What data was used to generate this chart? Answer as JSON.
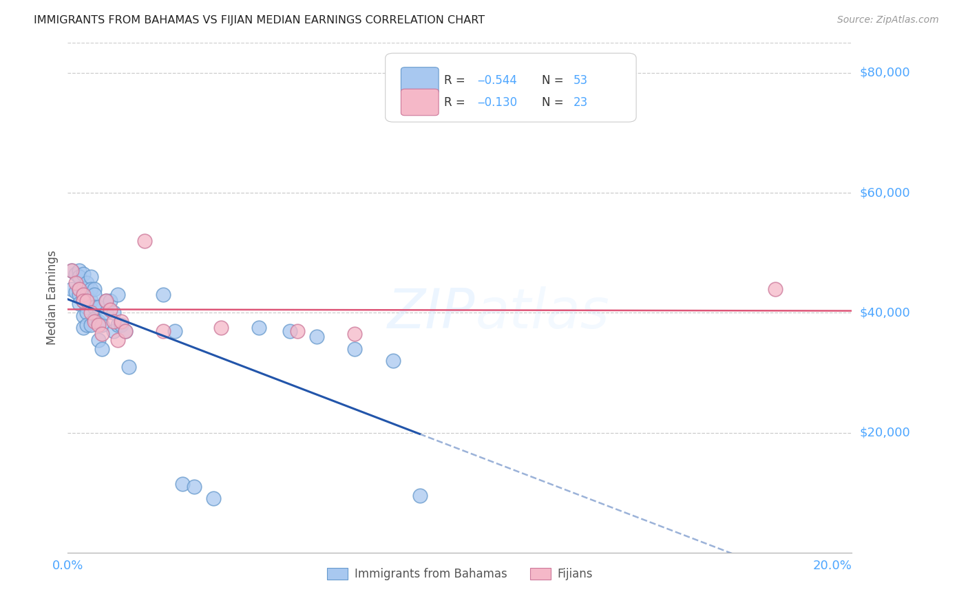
{
  "title": "IMMIGRANTS FROM BAHAMAS VS FIJIAN MEDIAN EARNINGS CORRELATION CHART",
  "source": "Source: ZipAtlas.com",
  "accent_color": "#4da6ff",
  "ylabel": "Median Earnings",
  "xlim": [
    0.0,
    0.205
  ],
  "ylim": [
    0,
    85000
  ],
  "ytick_labels": [
    "$80,000",
    "$60,000",
    "$40,000",
    "$20,000"
  ],
  "ytick_values": [
    80000,
    60000,
    40000,
    20000
  ],
  "background_color": "#ffffff",
  "bahamas_color": "#a8c8f0",
  "bahamas_edge_color": "#6699cc",
  "fijian_color": "#f5b8c8",
  "fijian_edge_color": "#cc7799",
  "bahamas_line_color": "#2255aa",
  "fijian_line_color": "#dd5577",
  "bahamas_x": [
    0.001,
    0.001,
    0.002,
    0.002,
    0.003,
    0.003,
    0.003,
    0.003,
    0.003,
    0.004,
    0.004,
    0.004,
    0.004,
    0.004,
    0.005,
    0.005,
    0.005,
    0.005,
    0.005,
    0.006,
    0.006,
    0.006,
    0.006,
    0.007,
    0.007,
    0.007,
    0.007,
    0.008,
    0.008,
    0.008,
    0.009,
    0.009,
    0.01,
    0.01,
    0.011,
    0.012,
    0.012,
    0.013,
    0.013,
    0.014,
    0.015,
    0.016,
    0.025,
    0.028,
    0.03,
    0.033,
    0.038,
    0.05,
    0.058,
    0.065,
    0.075,
    0.085,
    0.092
  ],
  "bahamas_y": [
    44000,
    47000,
    43500,
    46500,
    44000,
    47000,
    46000,
    43000,
    41500,
    46500,
    44000,
    42000,
    39500,
    37500,
    45000,
    43000,
    41000,
    40000,
    38000,
    46000,
    44000,
    42000,
    38000,
    44000,
    43000,
    41000,
    39000,
    41000,
    38500,
    35500,
    38000,
    34000,
    42000,
    40000,
    42000,
    40000,
    37000,
    43000,
    38000,
    38000,
    37000,
    31000,
    43000,
    37000,
    11500,
    11000,
    9000,
    37500,
    37000,
    36000,
    34000,
    32000,
    9500
  ],
  "fijian_x": [
    0.001,
    0.002,
    0.003,
    0.004,
    0.004,
    0.005,
    0.006,
    0.007,
    0.008,
    0.009,
    0.01,
    0.011,
    0.012,
    0.013,
    0.014,
    0.015,
    0.02,
    0.025,
    0.04,
    0.06,
    0.075,
    0.185
  ],
  "fijian_y": [
    47000,
    45000,
    44000,
    43000,
    42000,
    42000,
    40000,
    38500,
    38000,
    36500,
    42000,
    40500,
    38500,
    35500,
    38500,
    37000,
    52000,
    37000,
    37500,
    37000,
    36500,
    44000
  ]
}
